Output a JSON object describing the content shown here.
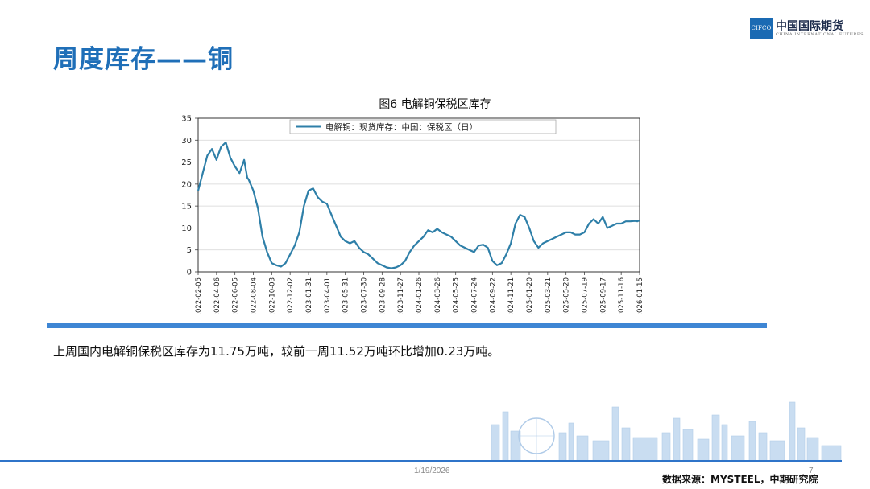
{
  "slide": {
    "title": "周度库存——铜",
    "summary": "上周国内电解铜保税区库存为11.75万吨，较前一周11.52万吨环比增加0.23万吨。",
    "date": "1/19/2026",
    "page_number": "7",
    "source": "数据来源：MYSTEEL，中期研究院"
  },
  "logo": {
    "box_text": "CIFCO",
    "name_cn": "中国国际期货",
    "name_en": "CHINA INTERNATIONAL FUTURES"
  },
  "chart_data": {
    "type": "line",
    "caption": "图6 电解铜保税区库存",
    "yticks": [
      0,
      5,
      10,
      15,
      20,
      25,
      30,
      35
    ],
    "ylim": [
      0,
      35
    ],
    "grid": true,
    "legend_position": "top-center",
    "color": "#2e7fa8",
    "x_tick_labels": [
      "2022-02-05",
      "2022-04-06",
      "2022-06-05",
      "2022-08-04",
      "2022-10-03",
      "2022-12-02",
      "2023-01-31",
      "2023-04-01",
      "2023-05-31",
      "2023-07-30",
      "2023-09-28",
      "2023-11-27",
      "2024-01-26",
      "2024-03-26",
      "2024-05-25",
      "2024-07-24",
      "2024-09-22",
      "2024-11-21",
      "2025-01-20",
      "2025-03-21",
      "2025-05-20",
      "2025-07-19",
      "2025-09-17",
      "2025-11-16",
      "2026-01-15"
    ],
    "series": [
      {
        "name": "电解铜：现货库存：中国：保税区（日）",
        "x": [
          "2022-02-05",
          "2022-02-20",
          "2022-03-07",
          "2022-03-22",
          "2022-04-06",
          "2022-04-13",
          "2022-04-21",
          "2022-05-06",
          "2022-05-21",
          "2022-06-05",
          "2022-06-20",
          "2022-07-05",
          "2022-07-15",
          "2022-07-20",
          "2022-08-04",
          "2022-08-19",
          "2022-09-03",
          "2022-09-18",
          "2022-10-03",
          "2022-10-18",
          "2022-11-02",
          "2022-11-17",
          "2022-12-02",
          "2022-12-17",
          "2023-01-01",
          "2023-01-16",
          "2023-01-31",
          "2023-02-15",
          "2023-03-02",
          "2023-03-17",
          "2023-04-01",
          "2023-04-16",
          "2023-05-01",
          "2023-05-16",
          "2023-05-31",
          "2023-06-15",
          "2023-06-30",
          "2023-07-15",
          "2023-07-30",
          "2023-08-14",
          "2023-08-29",
          "2023-09-13",
          "2023-09-28",
          "2023-10-13",
          "2023-10-28",
          "2023-11-12",
          "2023-11-27",
          "2023-12-12",
          "2023-12-27",
          "2024-01-11",
          "2024-01-26",
          "2024-02-10",
          "2024-02-25",
          "2024-03-11",
          "2024-03-26",
          "2024-04-10",
          "2024-04-25",
          "2024-05-10",
          "2024-05-25",
          "2024-06-09",
          "2024-06-24",
          "2024-07-09",
          "2024-07-24",
          "2024-08-08",
          "2024-08-23",
          "2024-09-07",
          "2024-09-22",
          "2024-10-07",
          "2024-10-22",
          "2024-11-06",
          "2024-11-21",
          "2024-12-06",
          "2024-12-21",
          "2025-01-05",
          "2025-01-20",
          "2025-02-04",
          "2025-02-19",
          "2025-03-06",
          "2025-03-21",
          "2025-04-05",
          "2025-04-20",
          "2025-05-05",
          "2025-05-20",
          "2025-06-04",
          "2025-06-19",
          "2025-07-04",
          "2025-07-19",
          "2025-08-03",
          "2025-08-18",
          "2025-09-02",
          "2025-09-17",
          "2025-10-02",
          "2025-10-17",
          "2025-11-01",
          "2025-11-16",
          "2025-12-01",
          "2025-12-16",
          "2025-12-31",
          "2026-01-08",
          "2026-01-15"
        ],
        "values": [
          18.5,
          22.5,
          26.5,
          28,
          25.5,
          27,
          28.5,
          29.5,
          26,
          24,
          22.5,
          25.5,
          21.5,
          21,
          18.5,
          14.5,
          8,
          4.5,
          2,
          1.5,
          1.2,
          2,
          4,
          6,
          9,
          15,
          18.5,
          19,
          17,
          16,
          15.5,
          13,
          10.5,
          8,
          7,
          6.5,
          7,
          5.5,
          4.5,
          4,
          3,
          2,
          1.5,
          1,
          0.8,
          1,
          1.5,
          2.5,
          4.5,
          6,
          7,
          8,
          9.5,
          9,
          9.8,
          9,
          8.5,
          8,
          7,
          6,
          5.5,
          5,
          4.5,
          6,
          6.2,
          5.5,
          2.5,
          1.5,
          2,
          4,
          6.5,
          11,
          13,
          12.5,
          10,
          7,
          5.5,
          6.5,
          7,
          7.5,
          8,
          8.5,
          9,
          9,
          8.5,
          8.5,
          9,
          11,
          12,
          11,
          12.5,
          10,
          10.5,
          11,
          11,
          11.5,
          11.5,
          11.6,
          11.52,
          11.75
        ]
      }
    ]
  }
}
